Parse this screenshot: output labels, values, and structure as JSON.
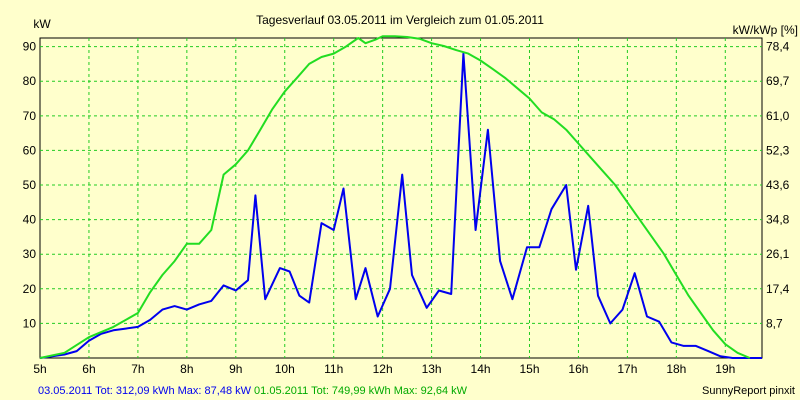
{
  "chart_data": {
    "type": "line",
    "title": "Tagesverlauf 03.05.2011 im Vergleich zum 01.05.2011",
    "ylabel_left": "kW",
    "ylabel_right": "kW/kWp [%]",
    "x_ticks": [
      "5h",
      "6h",
      "7h",
      "8h",
      "9h",
      "10h",
      "11h",
      "12h",
      "13h",
      "14h",
      "15h",
      "16h",
      "17h",
      "18h",
      "19h"
    ],
    "y_ticks_left": [
      "10",
      "20",
      "30",
      "40",
      "50",
      "60",
      "70",
      "80",
      "90"
    ],
    "y_ticks_right": [
      "8,7",
      "17,4",
      "26,1",
      "34,8",
      "43,6",
      "52,3",
      "61,0",
      "69,7",
      "78,4"
    ],
    "xlim": [
      5,
      19.75
    ],
    "ylim": [
      0,
      92.5
    ],
    "grid": true,
    "background_color": "#ffffcc",
    "plot_background": "#ffffcc",
    "grid_color": "#22cc22",
    "series": [
      {
        "color": "#0000ee",
        "x": [
          5.0,
          5.25,
          5.5,
          5.75,
          6.0,
          6.25,
          6.5,
          6.75,
          7.0,
          7.25,
          7.5,
          7.75,
          8.0,
          8.25,
          8.5,
          8.75,
          9.0,
          9.25,
          9.4,
          9.6,
          9.9,
          10.1,
          10.3,
          10.5,
          10.75,
          11.0,
          11.2,
          11.45,
          11.65,
          11.9,
          12.15,
          12.4,
          12.6,
          12.9,
          13.15,
          13.4,
          13.65,
          13.9,
          14.15,
          14.4,
          14.65,
          14.95,
          15.2,
          15.45,
          15.75,
          15.95,
          16.2,
          16.4,
          16.65,
          16.9,
          17.15,
          17.4,
          17.65,
          17.9,
          18.15,
          18.4,
          18.65,
          18.9,
          19.15,
          19.4,
          19.75
        ],
        "y": [
          0,
          0.5,
          1,
          2,
          5,
          7,
          8,
          8.5,
          9,
          11,
          14,
          15,
          14,
          15.5,
          16.5,
          21,
          19.5,
          22.5,
          47,
          17,
          26,
          25,
          18,
          16,
          39,
          37,
          49,
          17,
          26,
          12,
          20,
          53,
          24,
          14.5,
          19.5,
          18.5,
          88,
          37,
          66,
          28,
          17,
          32,
          32,
          43,
          50,
          25.5,
          44,
          18,
          10,
          14,
          24.5,
          12,
          10.5,
          4.5,
          3.5,
          3.5,
          2,
          0.5,
          0,
          0,
          0
        ]
      },
      {
        "color": "#22dd22",
        "x": [
          5.0,
          5.5,
          6.0,
          6.5,
          7.0,
          7.25,
          7.5,
          7.75,
          8.0,
          8.25,
          8.5,
          8.75,
          9.0,
          9.25,
          9.5,
          9.75,
          10.0,
          10.25,
          10.5,
          10.75,
          11.0,
          11.25,
          11.5,
          11.65,
          11.85,
          12.0,
          12.25,
          12.5,
          12.75,
          13.0,
          13.25,
          13.5,
          13.75,
          14.0,
          14.25,
          14.5,
          14.75,
          15.0,
          15.25,
          15.5,
          15.75,
          16.0,
          16.25,
          16.5,
          16.75,
          17.0,
          17.25,
          17.5,
          17.75,
          18.0,
          18.25,
          18.5,
          18.75,
          19.0,
          19.25,
          19.5
        ],
        "y": [
          0,
          1.5,
          6,
          9,
          13,
          19,
          24,
          28,
          33,
          33,
          37,
          53,
          56,
          60,
          66,
          72,
          77,
          81,
          85,
          87,
          88,
          90,
          92.5,
          91,
          92,
          93,
          93,
          92.8,
          92.3,
          91,
          90.2,
          89,
          88,
          86,
          83.5,
          81,
          78,
          75,
          71,
          69,
          66,
          62,
          58,
          54,
          50,
          45,
          40,
          35,
          30,
          24,
          18,
          13,
          8,
          4,
          1.5,
          0
        ]
      }
    ],
    "footer_left": [
      {
        "text": "03.05.2011  Tot: 312,09 kWh Max: 87,48 kW",
        "color": "#0000ee"
      },
      {
        "text": " 01.05.2011  Tot: 749,99 kWh Max: 92,64 kW",
        "color": "#00aa00"
      }
    ],
    "footer_right": "SunnyReport pinxit"
  }
}
